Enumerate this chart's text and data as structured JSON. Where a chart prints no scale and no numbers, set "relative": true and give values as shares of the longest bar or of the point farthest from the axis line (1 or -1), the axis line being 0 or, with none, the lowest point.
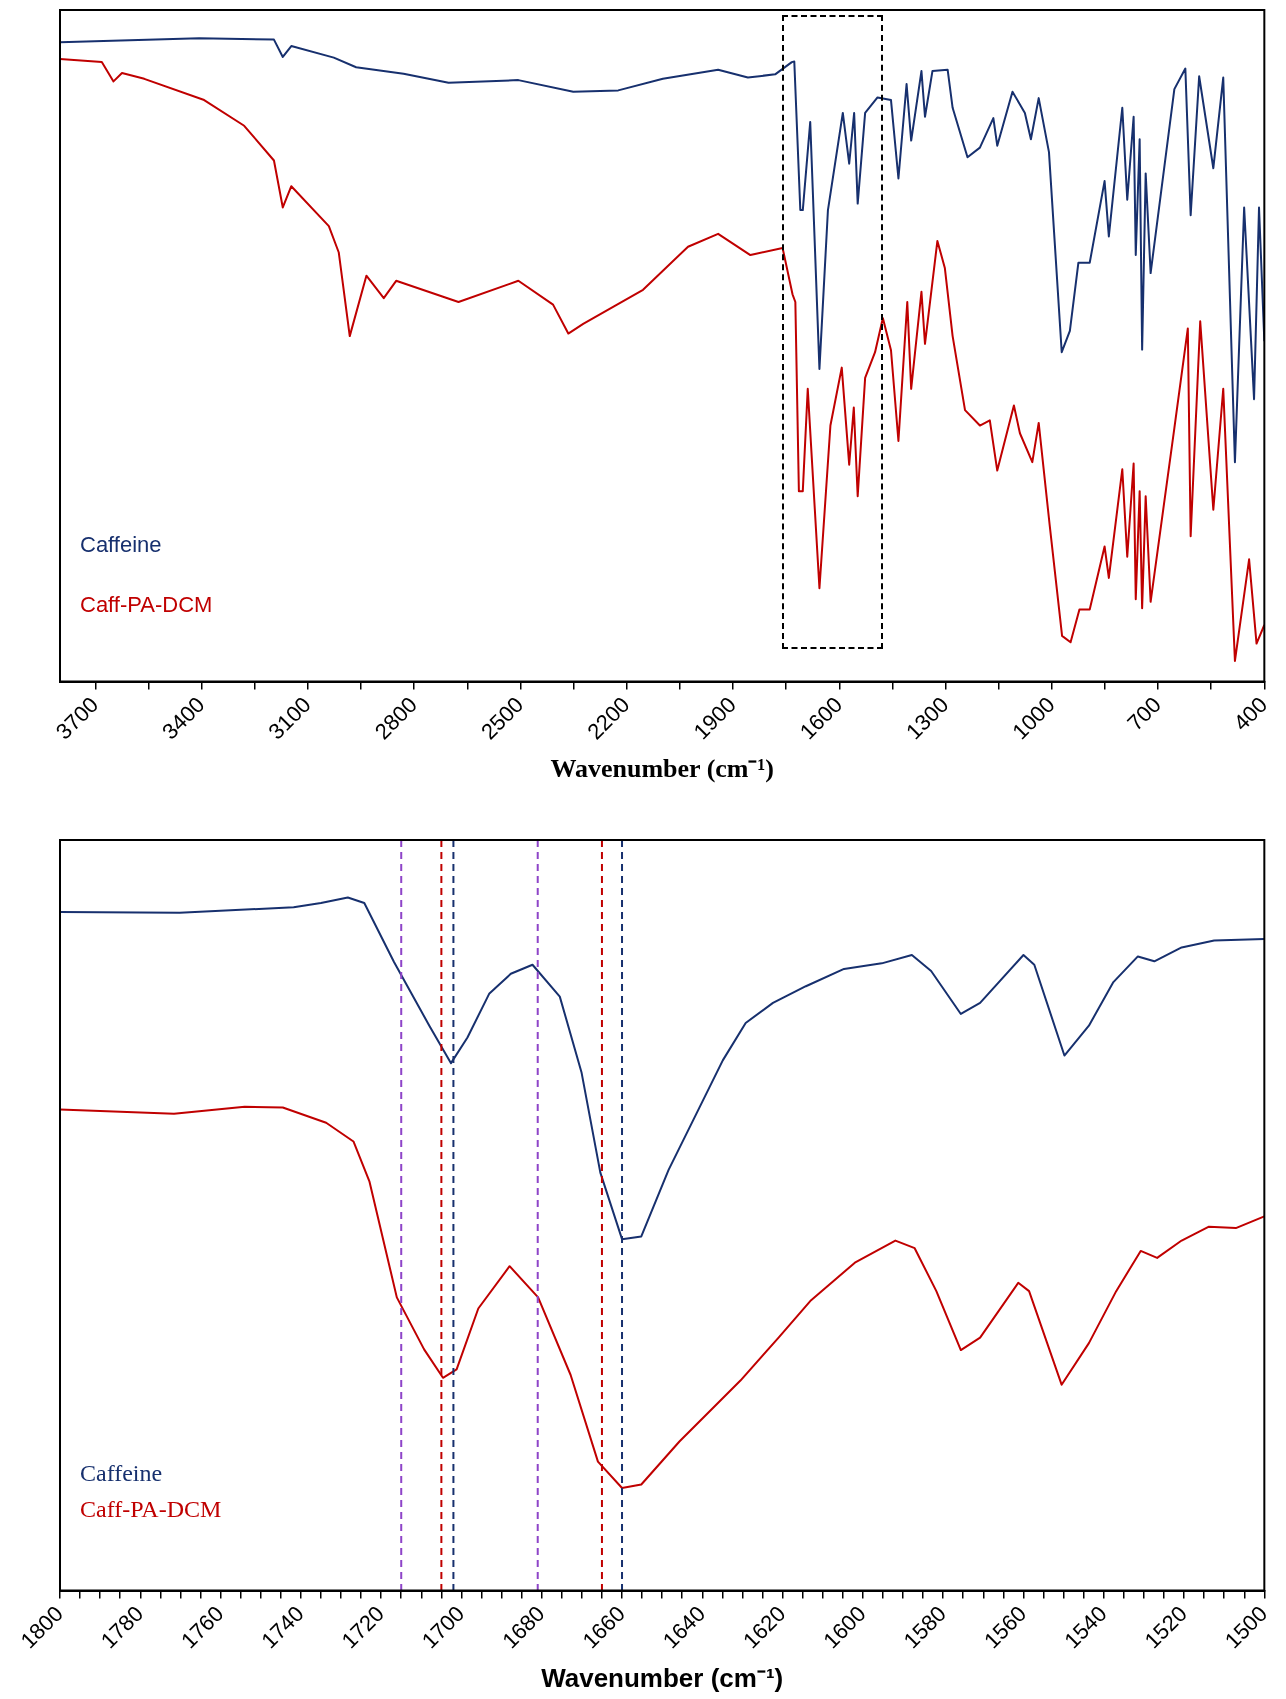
{
  "chart_data": [
    {
      "type": "line",
      "xlabel": "Wavenumber (cm⁻¹)",
      "relative": true,
      "legend": "bottom left",
      "grid": false,
      "xlim": [
        3800,
        400
      ],
      "xticks": [
        3700,
        {
          "value": 3550,
          "label": null
        },
        3400,
        {
          "value": 3250,
          "label": null
        },
        3100,
        {
          "value": 2950,
          "label": null
        },
        2800,
        {
          "value": 2650,
          "label": null
        },
        2500,
        {
          "value": 2350,
          "label": null
        },
        2200,
        {
          "value": 2050,
          "label": null
        },
        1900,
        {
          "value": 1750,
          "label": null
        },
        1600,
        {
          "value": 1450,
          "label": null
        },
        1300,
        {
          "value": 1150,
          "label": null
        },
        1000,
        {
          "value": 850,
          "label": null
        },
        700,
        {
          "value": 550,
          "label": null
        },
        400
      ],
      "series": [
        {
          "name": "Caffeine",
          "color": "#17306e",
          "x": [
            3800,
            3407,
            3196,
            3171,
            3147,
            3027,
            2964,
            2830,
            2703,
            2506,
            2351,
            2224,
            2098,
            1942,
            1858,
            1781,
            1734,
            1727,
            1710,
            1703,
            1682,
            1656,
            1632,
            1590,
            1572,
            1558,
            1548,
            1527,
            1492,
            1454,
            1433,
            1410,
            1397,
            1368,
            1358,
            1337,
            1294,
            1280,
            1238,
            1203,
            1165,
            1154,
            1111,
            1076,
            1059,
            1037,
            1008,
            972,
            949,
            925,
            893,
            851,
            839,
            801,
            787,
            769,
            763,
            752,
            745,
            735,
            721,
            654,
            623,
            608,
            584,
            544,
            516,
            483,
            457,
            429,
            415,
            400
          ],
          "values": [
            0.994,
            1.0,
            0.998,
            0.971,
            0.988,
            0.97,
            0.955,
            0.945,
            0.931,
            0.935,
            0.917,
            0.919,
            0.937,
            0.951,
            0.939,
            0.944,
            0.963,
            0.964,
            0.733,
            0.733,
            0.87,
            0.486,
            0.733,
            0.884,
            0.805,
            0.884,
            0.743,
            0.884,
            0.908,
            0.904,
            0.782,
            0.929,
            0.841,
            0.949,
            0.878,
            0.949,
            0.951,
            0.892,
            0.815,
            0.83,
            0.876,
            0.833,
            0.917,
            0.884,
            0.843,
            0.907,
            0.823,
            0.512,
            0.545,
            0.651,
            0.651,
            0.778,
            0.692,
            0.892,
            0.749,
            0.878,
            0.663,
            0.843,
            0.516,
            0.79,
            0.635,
            0.921,
            0.953,
            0.725,
            0.941,
            0.798,
            0.939,
            0.341,
            0.737,
            0.439,
            0.737,
            0.529
          ]
        },
        {
          "name": "Caff-PA-DCM",
          "color": "#c00000",
          "x": [
            3800,
            3682,
            3649,
            3625,
            3562,
            3393,
            3280,
            3196,
            3171,
            3147,
            3041,
            3013,
            2982,
            2935,
            2886,
            2851,
            2675,
            2506,
            2408,
            2365,
            2323,
            2154,
            2027,
            1942,
            1851,
            1760,
            1732,
            1724,
            1714,
            1703,
            1689,
            1656,
            1625,
            1593,
            1572,
            1559,
            1548,
            1527,
            1499,
            1477,
            1454,
            1433,
            1408,
            1397,
            1368,
            1358,
            1323,
            1302,
            1280,
            1245,
            1203,
            1175,
            1154,
            1107,
            1090,
            1055,
            1037,
            1006,
            971,
            947,
            922,
            893,
            851,
            839,
            801,
            787,
            769,
            763,
            752,
            745,
            735,
            721,
            654,
            616,
            608,
            581,
            544,
            516,
            483,
            443,
            422,
            400
          ],
          "values": [
            0.968,
            0.963,
            0.933,
            0.946,
            0.937,
            0.904,
            0.864,
            0.81,
            0.737,
            0.77,
            0.708,
            0.667,
            0.537,
            0.631,
            0.596,
            0.623,
            0.59,
            0.623,
            0.586,
            0.541,
            0.556,
            0.609,
            0.676,
            0.696,
            0.663,
            0.674,
            0.602,
            0.59,
            0.296,
            0.296,
            0.455,
            0.145,
            0.398,
            0.488,
            0.337,
            0.426,
            0.288,
            0.472,
            0.512,
            0.565,
            0.515,
            0.374,
            0.59,
            0.455,
            0.606,
            0.525,
            0.685,
            0.643,
            0.537,
            0.422,
            0.398,
            0.406,
            0.328,
            0.429,
            0.386,
            0.341,
            0.402,
            0.243,
            0.071,
            0.061,
            0.112,
            0.112,
            0.21,
            0.161,
            0.33,
            0.194,
            0.339,
            0.128,
            0.296,
            0.114,
            0.288,
            0.124,
            0.394,
            0.549,
            0.226,
            0.56,
            0.267,
            0.455,
            0.032,
            0.19,
            0.059,
            0.088
          ]
        }
      ]
    },
    {
      "type": "line",
      "xlabel": "Wavenumber (cm⁻¹)",
      "relative": true,
      "legend": "bottom left",
      "grid": false,
      "xlim": [
        1800,
        1500
      ],
      "xticks": [
        1800,
        {
          "value": 1795,
          "label": null
        },
        {
          "value": 1790,
          "label": null
        },
        {
          "value": 1785,
          "label": null
        },
        1780,
        {
          "value": 1775,
          "label": null
        },
        {
          "value": 1770,
          "label": null
        },
        {
          "value": 1765,
          "label": null
        },
        1760,
        {
          "value": 1755,
          "label": null
        },
        {
          "value": 1750,
          "label": null
        },
        {
          "value": 1745,
          "label": null
        },
        1740,
        {
          "value": 1735,
          "label": null
        },
        {
          "value": 1730,
          "label": null
        },
        {
          "value": 1725,
          "label": null
        },
        1720,
        {
          "value": 1715,
          "label": null
        },
        {
          "value": 1710,
          "label": null
        },
        {
          "value": 1705,
          "label": null
        },
        1700,
        {
          "value": 1695,
          "label": null
        },
        {
          "value": 1690,
          "label": null
        },
        {
          "value": 1685,
          "label": null
        },
        1680,
        {
          "value": 1675,
          "label": null
        },
        {
          "value": 1670,
          "label": null
        },
        {
          "value": 1665,
          "label": null
        },
        1660,
        {
          "value": 1655,
          "label": null
        },
        {
          "value": 1650,
          "label": null
        },
        {
          "value": 1645,
          "label": null
        },
        1640,
        {
          "value": 1635,
          "label": null
        },
        {
          "value": 1630,
          "label": null
        },
        {
          "value": 1625,
          "label": null
        },
        1620,
        {
          "value": 1615,
          "label": null
        },
        {
          "value": 1610,
          "label": null
        },
        {
          "value": 1605,
          "label": null
        },
        1600,
        {
          "value": 1595,
          "label": null
        },
        {
          "value": 1590,
          "label": null
        },
        {
          "value": 1585,
          "label": null
        },
        1580,
        {
          "value": 1575,
          "label": null
        },
        {
          "value": 1570,
          "label": null
        },
        {
          "value": 1565,
          "label": null
        },
        1560,
        {
          "value": 1555,
          "label": null
        },
        {
          "value": 1550,
          "label": null
        },
        {
          "value": 1545,
          "label": null
        },
        1540,
        {
          "value": 1535,
          "label": null
        },
        {
          "value": 1530,
          "label": null
        },
        {
          "value": 1525,
          "label": null
        },
        1520,
        {
          "value": 1515,
          "label": null
        },
        {
          "value": 1510,
          "label": null
        },
        {
          "value": 1505,
          "label": null
        },
        1500
      ],
      "ref_lines": [
        {
          "axis": "x",
          "value": 1715,
          "color": "#8e44c8",
          "line_style": "dashed"
        },
        {
          "axis": "x",
          "value": 1705,
          "color": "#c00000",
          "line_style": "dashed"
        },
        {
          "axis": "x",
          "value": 1702,
          "color": "#17306e",
          "line_style": "dashed"
        },
        {
          "axis": "x",
          "value": 1681,
          "color": "#8e44c8",
          "line_style": "dashed"
        },
        {
          "axis": "x",
          "value": 1665,
          "color": "#c00000",
          "line_style": "dashed"
        },
        {
          "axis": "x",
          "value": 1660,
          "color": "#17306e",
          "line_style": "dashed"
        }
      ],
      "series": [
        {
          "name": "Caffeine",
          "color": "#17306e",
          "x": [
            1800,
            1770.2,
            1741.8,
            1735,
            1728.3,
            1724.2,
            1716.8,
            1708,
            1702.6,
            1698.5,
            1693.1,
            1687.7,
            1682.3,
            1675.5,
            1670.1,
            1665.4,
            1660,
            1655.2,
            1648.4,
            1634.9,
            1629.2,
            1622.4,
            1614.2,
            1604.7,
            1595.3,
            1587.8,
            1583,
            1575.6,
            1570.8,
            1560,
            1557.3,
            1549.8,
            1543.7,
            1537.6,
            1531.5,
            1527.4,
            1520.6,
            1512.5,
            1500
          ],
          "values": [
            0.979,
            0.978,
            0.986,
            0.992,
            1.0,
            0.992,
            0.907,
            0.815,
            0.761,
            0.798,
            0.861,
            0.89,
            0.903,
            0.857,
            0.748,
            0.603,
            0.507,
            0.511,
            0.607,
            0.765,
            0.819,
            0.848,
            0.872,
            0.897,
            0.905,
            0.917,
            0.894,
            0.832,
            0.848,
            0.917,
            0.903,
            0.772,
            0.815,
            0.878,
            0.915,
            0.908,
            0.928,
            0.938,
            0.94
          ]
        },
        {
          "name": "Caff-PA-DCM",
          "color": "#c00000",
          "x": [
            1800,
            1771.6,
            1754,
            1744.5,
            1733.7,
            1726.9,
            1722.9,
            1716.1,
            1709.3,
            1704.6,
            1701.2,
            1695.8,
            1688,
            1680.9,
            1672.8,
            1666,
            1660,
            1655.2,
            1645.7,
            1630.5,
            1621,
            1612.9,
            1602,
            1591.9,
            1587.1,
            1581.7,
            1575.6,
            1570.8,
            1561.3,
            1558.6,
            1550.5,
            1543.7,
            1536.9,
            1530.8,
            1526.7,
            1520.6,
            1513.8,
            1507.1,
            1500
          ],
          "values": [
            0.694,
            0.688,
            0.698,
            0.697,
            0.675,
            0.648,
            0.59,
            0.423,
            0.348,
            0.307,
            0.319,
            0.407,
            0.468,
            0.423,
            0.311,
            0.186,
            0.148,
            0.153,
            0.215,
            0.303,
            0.365,
            0.419,
            0.473,
            0.505,
            0.494,
            0.432,
            0.347,
            0.365,
            0.444,
            0.432,
            0.297,
            0.357,
            0.432,
            0.49,
            0.48,
            0.505,
            0.525,
            0.523,
            0.54
          ]
        }
      ]
    }
  ]
}
